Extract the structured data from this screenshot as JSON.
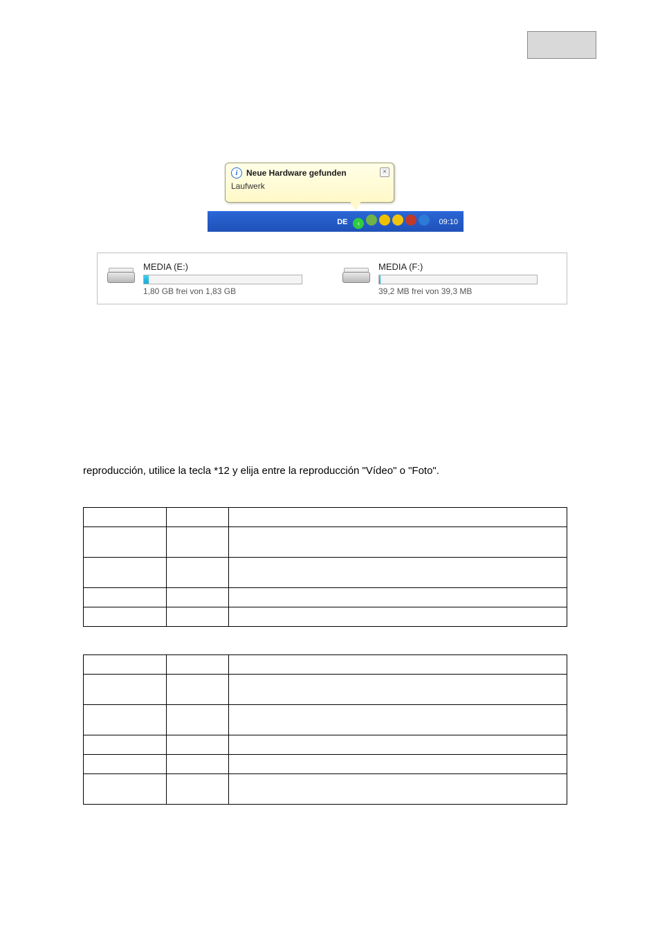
{
  "notification": {
    "title": "Neue Hardware gefunden",
    "subtitle": "Laufwerk",
    "info_glyph": "i",
    "close_glyph": "×"
  },
  "taskbar": {
    "lang": "DE",
    "clock": "09:10",
    "tray_icons": [
      {
        "name": "expand-icon",
        "bg": "#2ecc40",
        "fg": "#ffffff",
        "glyph": "‹"
      },
      {
        "name": "safely-remove-icon",
        "bg": "#6fb24a",
        "fg": "#ffffff",
        "glyph": ""
      },
      {
        "name": "antivirus-icon",
        "bg": "#f0c000",
        "fg": "#c0392b",
        "glyph": ""
      },
      {
        "name": "norton-icon",
        "bg": "#f1c40f",
        "fg": "#d35400",
        "glyph": ""
      },
      {
        "name": "network-icon",
        "bg": "#c0392b",
        "fg": "#ffffff",
        "glyph": ""
      },
      {
        "name": "audio-icon",
        "bg": "#2c7bd6",
        "fg": "#a7e6ff",
        "glyph": ""
      }
    ]
  },
  "drives": [
    {
      "name": "MEDIA (E:)",
      "free_text": "1,80 GB frei von 1,83 GB",
      "fill_pct": 3
    },
    {
      "name": "MEDIA (F:)",
      "free_text": "39,2 MB frei von 39,3 MB",
      "fill_pct": 1
    }
  ],
  "paragraph": "reproducción, utilice la tecla *12 y elija entre la reproducción \"Vídeo\" o \"Foto\".",
  "table1_rows": [
    {
      "tall": false
    },
    {
      "tall": true
    },
    {
      "tall": true
    },
    {
      "tall": false
    },
    {
      "tall": false
    }
  ],
  "table2_rows": [
    {
      "tall": false
    },
    {
      "tall": true
    },
    {
      "tall": true
    },
    {
      "tall": false
    },
    {
      "tall": false
    },
    {
      "tall": true
    }
  ]
}
